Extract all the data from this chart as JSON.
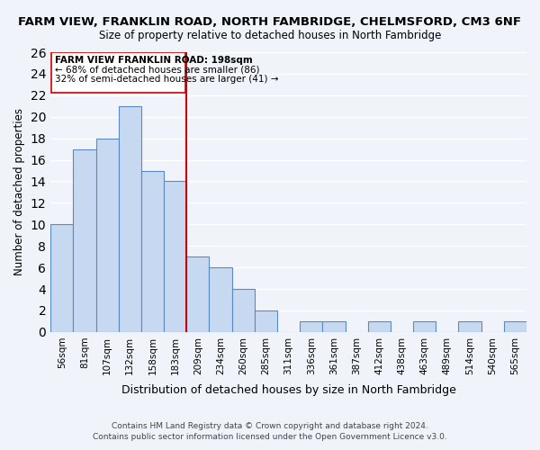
{
  "title1": "FARM VIEW, FRANKLIN ROAD, NORTH FAMBRIDGE, CHELMSFORD, CM3 6NF",
  "title2": "Size of property relative to detached houses in North Fambridge",
  "xlabel": "Distribution of detached houses by size in North Fambridge",
  "ylabel": "Number of detached properties",
  "bin_labels": [
    "56sqm",
    "81sqm",
    "107sqm",
    "132sqm",
    "158sqm",
    "183sqm",
    "209sqm",
    "234sqm",
    "260sqm",
    "285sqm",
    "311sqm",
    "336sqm",
    "361sqm",
    "387sqm",
    "412sqm",
    "438sqm",
    "463sqm",
    "489sqm",
    "514sqm",
    "540sqm",
    "565sqm"
  ],
  "bar_values": [
    10,
    17,
    18,
    21,
    15,
    14,
    7,
    6,
    4,
    2,
    0,
    1,
    1,
    0,
    1,
    0,
    1,
    0,
    1,
    0,
    1
  ],
  "bar_color": "#c6d9f0",
  "bar_edge_color": "#5a8ac6",
  "vline_x": 5.5,
  "vline_color": "#cc0000",
  "ylim": [
    0,
    26
  ],
  "yticks": [
    0,
    2,
    4,
    6,
    8,
    10,
    12,
    14,
    16,
    18,
    20,
    22,
    24,
    26
  ],
  "annotation_title": "FARM VIEW FRANKLIN ROAD: 198sqm",
  "annotation_line1": "← 68% of detached houses are smaller (86)",
  "annotation_line2": "32% of semi-detached houses are larger (41) →",
  "footer1": "Contains HM Land Registry data © Crown copyright and database right 2024.",
  "footer2": "Contains public sector information licensed under the Open Government Licence v3.0.",
  "background_color": "#f0f4fa"
}
